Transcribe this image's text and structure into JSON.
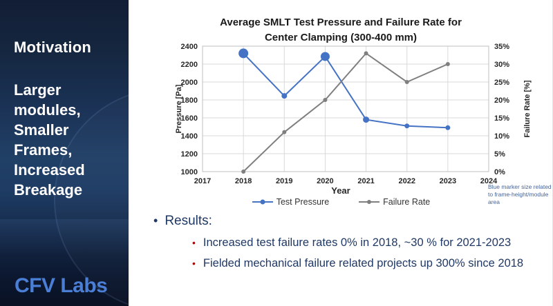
{
  "sidebar": {
    "title": "Motivation",
    "subtitle_lines": [
      "Larger",
      "modules,",
      "Smaller",
      "Frames,",
      "Increased",
      "Breakage"
    ],
    "logo": "CFV Labs"
  },
  "chart_data": {
    "type": "line",
    "title_lines": [
      "Average SMLT Test Pressure and Failure Rate for",
      "Center Clamping (300-400 mm)"
    ],
    "xlabel": "Year",
    "ylabel_left": "Pressure [Pa]",
    "ylabel_right": "Failure Rate [%]",
    "x_ticks": [
      2017,
      2018,
      2019,
      2020,
      2021,
      2022,
      2023,
      2024
    ],
    "x_range": [
      2017,
      2024
    ],
    "left_axis": {
      "min": 1000,
      "max": 1400,
      "ticks": [
        1000,
        1200,
        1400,
        1600,
        1800,
        2000,
        2200,
        2400
      ],
      "range": [
        1000,
        2400
      ]
    },
    "right_axis": {
      "tick_labels": [
        "0%",
        "5%",
        "10%",
        "15%",
        "20%",
        "25%",
        "30%",
        "35%"
      ],
      "range": [
        0,
        35
      ]
    },
    "grid": true,
    "legend_position": "bottom",
    "series": [
      {
        "name": "Test Pressure",
        "axis": "left",
        "color": "#4472c4",
        "x": [
          2018,
          2019,
          2020,
          2021,
          2022,
          2023
        ],
        "values": [
          2320,
          1845,
          2285,
          1580,
          1510,
          1490
        ],
        "marker_radii": [
          7,
          4,
          6.5,
          4.5,
          3.5,
          3.5
        ]
      },
      {
        "name": "Failure Rate",
        "axis": "right",
        "color": "#7f7f7f",
        "x": [
          2018,
          2019,
          2020,
          2021,
          2022,
          2023
        ],
        "values": [
          0,
          11,
          20,
          33,
          25,
          30
        ],
        "marker_radii": [
          3,
          3,
          3,
          3,
          3,
          3
        ]
      }
    ],
    "note": "Blue marker size related to frame-height/module area"
  },
  "results": {
    "heading": "Results:",
    "bullets": [
      "Increased test failure rates 0% in 2018, ~30 % for 2021-2023",
      "Fielded mechanical failure related projects up 300% since 2018"
    ]
  },
  "colors": {
    "pressure_series": "#4472c4",
    "failure_series": "#7f7f7f",
    "gridline": "#d9d9d9",
    "plot_border": "#bfbfbf",
    "results_text": "#1f3864",
    "sub_bullet": "#c00000",
    "logo_blue": "#4b7fd6",
    "note_text": "#44639c"
  }
}
